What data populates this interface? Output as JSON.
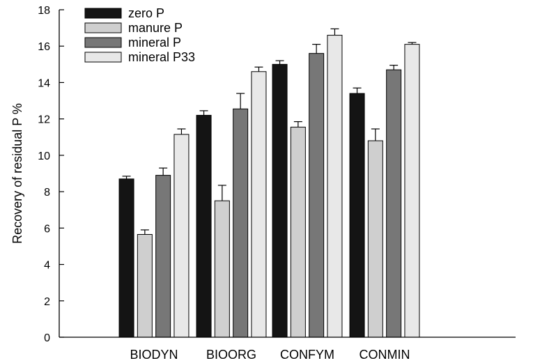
{
  "chart_data": {
    "type": "bar",
    "categories": [
      "BIODYN",
      "BIOORG",
      "CONFYM",
      "CONMIN"
    ],
    "series": [
      {
        "name": "zero P",
        "color": "#141414",
        "values": [
          8.7,
          12.2,
          15.0,
          13.4
        ],
        "errors": [
          0.15,
          0.25,
          0.2,
          0.3
        ]
      },
      {
        "name": "manure P",
        "color": "#cfcfcf",
        "values": [
          5.65,
          7.5,
          11.55,
          10.8
        ],
        "errors": [
          0.25,
          0.85,
          0.3,
          0.65
        ]
      },
      {
        "name": "mineral P",
        "color": "#777777",
        "values": [
          8.9,
          12.55,
          15.6,
          14.7
        ],
        "errors": [
          0.4,
          0.85,
          0.5,
          0.25
        ]
      },
      {
        "name": "mineral P33",
        "color": "#e8e8e8",
        "values": [
          11.15,
          14.6,
          16.6,
          16.1
        ],
        "errors": [
          0.3,
          0.25,
          0.35,
          0.1
        ]
      }
    ],
    "yticks": [
      0,
      2,
      4,
      6,
      8,
      10,
      12,
      14,
      16,
      18
    ],
    "ylim": [
      0,
      18
    ],
    "ylabel": "Recovery of residual P %",
    "xlabel": "",
    "title": "",
    "legend": "top-left",
    "grid": false
  }
}
